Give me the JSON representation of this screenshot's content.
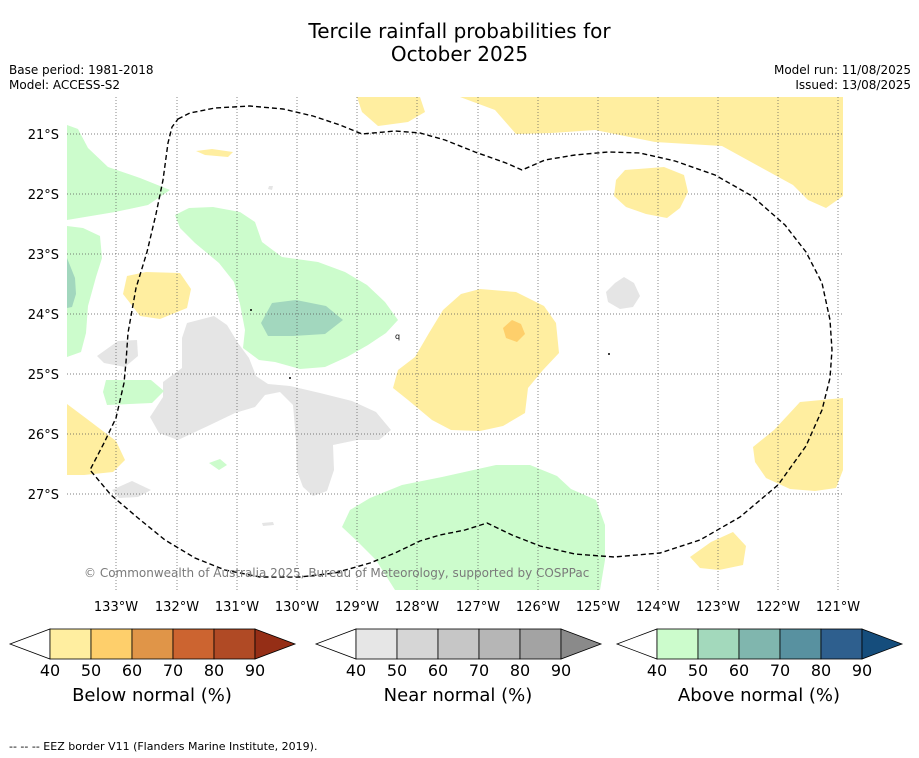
{
  "title_line1": "Tercile rainfall probabilities for",
  "title_line2": "October 2025",
  "info": {
    "base_period": "Base period: 1981-2018",
    "model": "Model: ACCESS-S2",
    "model_run": "Model run: 11/08/2025",
    "issued": "Issued: 13/08/2025"
  },
  "map": {
    "lon_labels": [
      "133°W",
      "132°W",
      "131°W",
      "130°W",
      "129°W",
      "128°W",
      "127°W",
      "126°W",
      "125°W",
      "124°W",
      "123°W",
      "122°W",
      "121°W"
    ],
    "lat_labels": [
      "21°S",
      "22°S",
      "23°S",
      "24°S",
      "25°S",
      "26°S",
      "27°S"
    ],
    "copyright": "© Commonwealth of Australia 2025, Bureau of Meteorology, supported by COSPPac",
    "colors": {
      "below_40": "#ffeea0",
      "below_50": "#fecf6b",
      "near_40": "#e5e5e5",
      "above_40": "#ccfccc",
      "above_50": "#a2d7be"
    }
  },
  "colorbars": [
    {
      "title": "Below normal (%)",
      "ticks": [
        "40",
        "50",
        "60",
        "70",
        "80",
        "90"
      ],
      "colors": [
        "#ffffff",
        "#ffeea0",
        "#fecf6b",
        "#e09548",
        "#cc6430",
        "#b04a25",
        "#952e16"
      ]
    },
    {
      "title": "Near normal (%)",
      "ticks": [
        "40",
        "50",
        "60",
        "70",
        "80",
        "90"
      ],
      "colors": [
        "#ffffff",
        "#e6e6e6",
        "#d6d6d6",
        "#c6c6c6",
        "#b6b6b6",
        "#a3a3a3",
        "#8a8a8a"
      ]
    },
    {
      "title": "Above normal (%)",
      "ticks": [
        "40",
        "50",
        "60",
        "70",
        "80",
        "90"
      ],
      "colors": [
        "#ffffff",
        "#ccfccc",
        "#a3d9bc",
        "#80b6ae",
        "#5891a0",
        "#2e5f8e",
        "#154d7c"
      ]
    }
  ],
  "footnote": "--  --  -- EEZ border V11 (Flanders Marine Institute, 2019)."
}
